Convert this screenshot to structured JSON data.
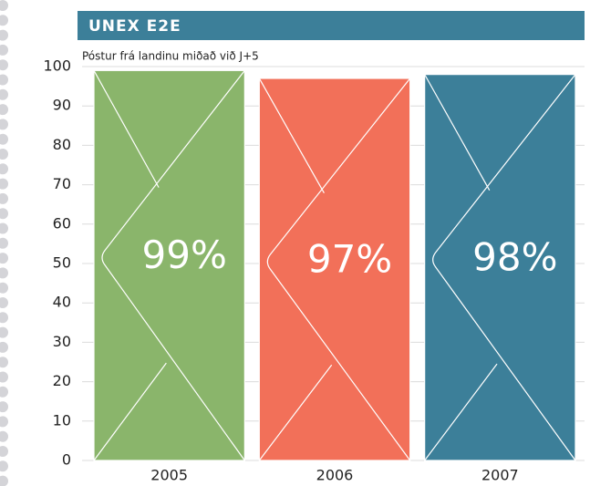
{
  "chart_data": {
    "type": "bar",
    "title": "UNEX E2E",
    "subtitle": "Póstur frá landinu miðað við J+5",
    "categories": [
      "2005",
      "2006",
      "2007"
    ],
    "values": [
      99,
      97,
      98
    ],
    "value_labels": [
      "99%",
      "97%",
      "98%"
    ],
    "colors": [
      "#8ab56b",
      "#f27059",
      "#3c7f99"
    ],
    "ylim": [
      0,
      100
    ],
    "yticks": [
      0,
      10,
      20,
      30,
      40,
      50,
      60,
      70,
      80,
      90,
      100
    ],
    "grid": true
  }
}
